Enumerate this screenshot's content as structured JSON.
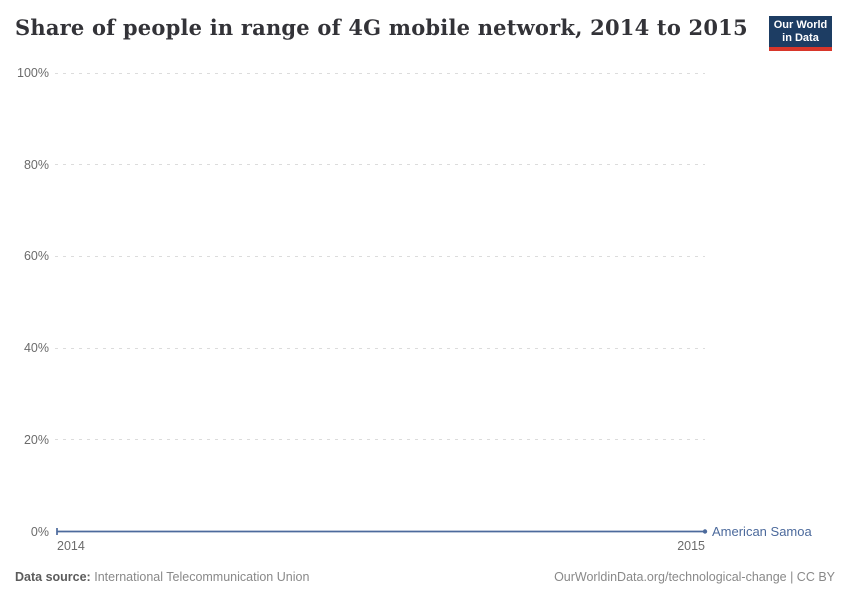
{
  "header": {
    "title": "Share of people in range of 4G mobile network, 2014 to 2015",
    "logo": {
      "line1": "Our World",
      "line2": "in Data"
    }
  },
  "chart_data": {
    "type": "line",
    "title": "Share of people in range of 4G mobile network, 2014 to 2015",
    "x": [
      2014,
      2015
    ],
    "series": [
      {
        "name": "American Samoa",
        "values": [
          0,
          0
        ],
        "color": "#4C6A9C"
      }
    ],
    "xlim": [
      2014,
      2015
    ],
    "ylim": [
      0,
      100
    ],
    "x_ticks": [
      {
        "value": 2014,
        "label": "2014"
      },
      {
        "value": 2015,
        "label": "2015"
      }
    ],
    "y_ticks": [
      {
        "value": 0,
        "label": "0%"
      },
      {
        "value": 20,
        "label": "20%"
      },
      {
        "value": 40,
        "label": "40%"
      },
      {
        "value": 60,
        "label": "60%"
      },
      {
        "value": 80,
        "label": "80%"
      },
      {
        "value": 100,
        "label": "100%"
      }
    ],
    "grid": "horizontal-dashed",
    "legend_position": "end-of-line-label",
    "xlabel": "",
    "ylabel": ""
  },
  "footer": {
    "source_label": "Data source:",
    "source_value": "International Telecommunication Union",
    "credit": "OurWorldinData.org/technological-change | CC BY"
  },
  "colors": {
    "line": "#4C6A9C",
    "title_text": "#333338",
    "tick_text": "#6b6b6b",
    "gridline": "#dcdcdc",
    "logo_bg": "#1d3d63",
    "logo_stripe": "#d8362a",
    "footer_text": "#898989"
  }
}
